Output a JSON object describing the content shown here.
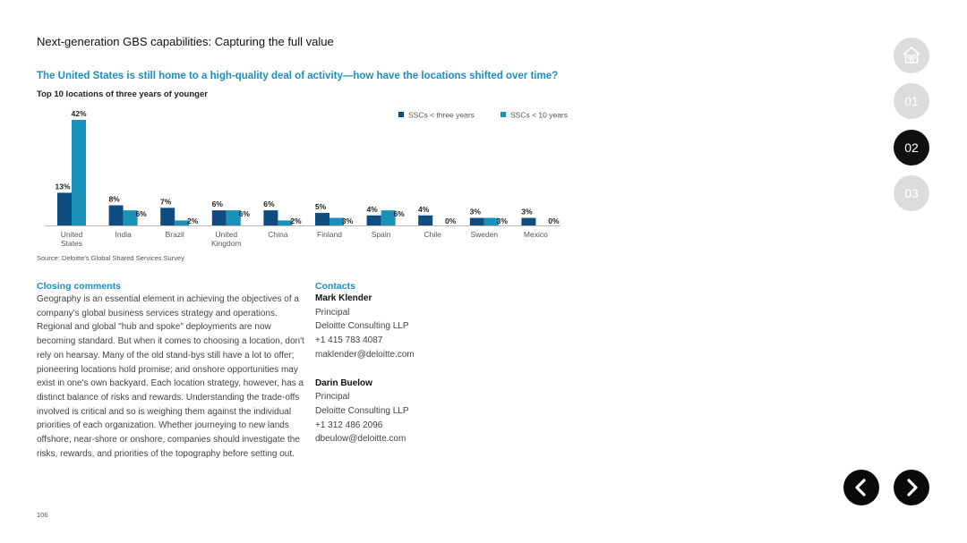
{
  "header": {
    "title": "Next-generation GBS capabilities: Capturing the full value"
  },
  "subtitle": "The United States is still home to a high-quality deal of activity—how have the locations shifted over time?",
  "chart_caption": "Top 10 locations of three years of younger",
  "chart_data": {
    "type": "bar",
    "categories": [
      [
        "United",
        "States"
      ],
      [
        "India"
      ],
      [
        "Brazil"
      ],
      [
        "United",
        "Kingdom"
      ],
      [
        "China"
      ],
      [
        "Finland"
      ],
      [
        "Spain"
      ],
      [
        "Chile"
      ],
      [
        "Sweden"
      ],
      [
        "Mexico"
      ]
    ],
    "series": [
      {
        "name": "SSCs < three years",
        "color": "#0f4c81",
        "values": [
          13,
          8,
          7,
          6,
          6,
          5,
          4,
          4,
          3,
          3
        ]
      },
      {
        "name": "SSCs < 10 years",
        "color": "#1892b8",
        "values": [
          42,
          6,
          2,
          6,
          2,
          3,
          6,
          0,
          3,
          0
        ]
      }
    ],
    "value_suffix": "%",
    "ylim": [
      0,
      42
    ],
    "grid": false,
    "legend_position": "top-right",
    "xlabel": "",
    "ylabel": ""
  },
  "source": "Source: Deloitte's Global Shared Services Survey",
  "closing": {
    "heading": "Closing comments",
    "body": "Geography is an essential element in achieving the objectives of a company's global business services strategy and operations. Regional and global \"hub and spoke\" deployments are now becoming standard. But when it comes to choosing a location, don't rely on hearsay. Many of the old stand-bys still have a lot to offer; pioneering locations hold promise; and onshore opportunities may exist in one's own backyard. Each location strategy, however, has a distinct balance of risks and rewards. Understanding the trade-offs involved is critical and so is weighing them against the individual priorities of each organization. Whether journeying to new lands offshore, near-shore or onshore, companies should investigate the risks, rewards, and priorities of the topography before setting out."
  },
  "contacts": {
    "heading": "Contacts",
    "people": [
      {
        "name": "Mark Klender",
        "role": "Principal",
        "company": "Deloitte Consulting LLP",
        "phone": "+1 415 783 4087",
        "email": "maklender@deloitte.com"
      },
      {
        "name": "Darin Buelow",
        "role": "Principal",
        "company": "Deloitte Consulting LLP",
        "phone": "+1 312 486 2096",
        "email": "dbeulow@deloitte.com"
      }
    ]
  },
  "page_number": "106",
  "nav": {
    "home_icon": "home-icon",
    "sections": [
      "01",
      "02",
      "03"
    ],
    "active": "02",
    "prev_icon": "chevron-left-icon",
    "next_icon": "chevron-right-icon"
  }
}
